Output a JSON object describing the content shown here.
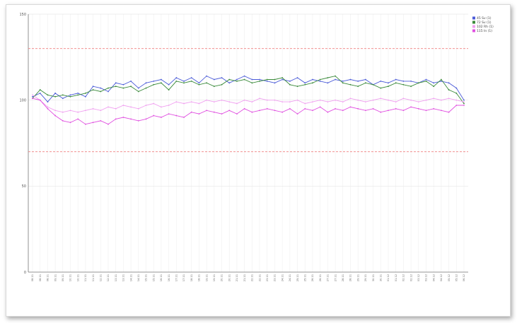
{
  "chart_data": {
    "type": "line",
    "title": "",
    "xlabel": "",
    "ylabel": "",
    "ylim": [
      0,
      150
    ],
    "yticks": [
      "0",
      "50",
      "100",
      "150"
    ],
    "grid": true,
    "legend_position": "top-right",
    "reference_lines": [
      {
        "value": 130,
        "color": "#f08080",
        "style": "dashed"
      },
      {
        "value": 70,
        "color": "#f08080",
        "style": "dashed"
      }
    ],
    "x_tick_count": 58,
    "x_tick_labels": [
      "08.11",
      "08.11",
      "08.11",
      "09.11",
      "09.11",
      "10.11",
      "10.11",
      "11.11",
      "11.11",
      "12.11",
      "12.11",
      "13.11",
      "13.11",
      "14.11",
      "14.11",
      "15.11",
      "15.11",
      "16.11",
      "16.11",
      "17.11",
      "17.11",
      "18.11",
      "18.11",
      "19.11",
      "19.11",
      "20.11",
      "20.11",
      "21.11",
      "21.11",
      "22.11",
      "22.11",
      "23.11",
      "23.11",
      "24.11",
      "24.11",
      "25.11",
      "25.11",
      "26.11",
      "26.11",
      "27.11",
      "27.11",
      "28.11",
      "28.11",
      "29.11",
      "29.11",
      "30.11",
      "30.11",
      "01.12",
      "01.12",
      "02.12",
      "02.12",
      "03.12",
      "03.12",
      "04.12",
      "04.12",
      "05.12",
      "05.12",
      "06.12"
    ],
    "series": [
      {
        "name": "45 Sv (1)",
        "color": "#4b5bd8",
        "values": [
          102,
          104,
          99,
          104,
          101,
          103,
          104,
          102,
          108,
          107,
          105,
          110,
          109,
          111,
          107,
          110,
          111,
          112,
          109,
          113,
          111,
          113,
          110,
          114,
          112,
          113,
          110,
          112,
          114,
          112,
          112,
          111,
          110,
          112,
          111,
          113,
          110,
          112,
          111,
          110,
          112,
          111,
          112,
          111,
          112,
          109,
          111,
          110,
          112,
          111,
          111,
          110,
          112,
          110,
          111,
          110,
          107,
          100
        ]
      },
      {
        "name": "72 Sv (1)",
        "color": "#3a8a3a",
        "values": [
          101,
          106,
          103,
          102,
          103,
          102,
          103,
          104,
          106,
          105,
          107,
          108,
          107,
          108,
          105,
          107,
          109,
          110,
          106,
          111,
          110,
          111,
          109,
          110,
          108,
          109,
          112,
          111,
          112,
          110,
          111,
          112,
          112,
          113,
          109,
          108,
          109,
          110,
          112,
          113,
          114,
          110,
          109,
          108,
          110,
          109,
          107,
          108,
          110,
          109,
          108,
          110,
          111,
          108,
          112,
          106,
          104,
          98
        ]
      },
      {
        "name": "102 Rh (1)",
        "color": "#f0a0f0",
        "values": [
          103,
          100,
          96,
          94,
          93,
          94,
          93,
          94,
          95,
          94,
          96,
          95,
          97,
          96,
          95,
          97,
          98,
          96,
          97,
          99,
          98,
          99,
          98,
          100,
          99,
          100,
          99,
          98,
          100,
          99,
          101,
          100,
          100,
          99,
          99,
          100,
          98,
          99,
          100,
          99,
          100,
          99,
          101,
          100,
          99,
          100,
          101,
          100,
          99,
          101,
          100,
          99,
          100,
          101,
          100,
          101,
          100,
          99
        ]
      },
      {
        "name": "115 In (1)",
        "color": "#e050e0",
        "values": [
          101,
          100,
          95,
          91,
          88,
          87,
          89,
          86,
          87,
          88,
          86,
          89,
          90,
          89,
          88,
          89,
          91,
          90,
          92,
          91,
          90,
          93,
          92,
          94,
          93,
          92,
          94,
          92,
          95,
          93,
          94,
          95,
          94,
          93,
          95,
          92,
          95,
          94,
          96,
          93,
          95,
          94,
          96,
          95,
          94,
          95,
          93,
          94,
          95,
          94,
          96,
          95,
          94,
          95,
          94,
          93,
          97,
          97
        ]
      }
    ]
  }
}
